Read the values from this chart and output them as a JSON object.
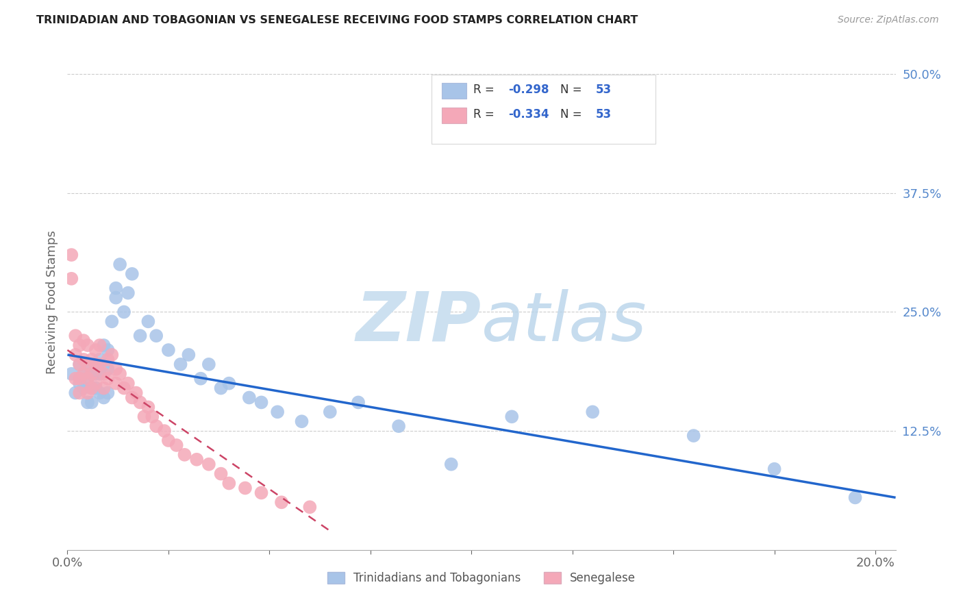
{
  "title": "TRINIDADIAN AND TOBAGONIAN VS SENEGALESE RECEIVING FOOD STAMPS CORRELATION CHART",
  "source": "Source: ZipAtlas.com",
  "ylabel": "Receiving Food Stamps",
  "blue_color": "#a8c4e8",
  "pink_color": "#f4a8b8",
  "blue_line_color": "#2266cc",
  "pink_line_color": "#cc4466",
  "text_color_dark": "#333333",
  "text_color_blue": "#3366cc",
  "text_color_right": "#5588cc",
  "r_blue": "-0.298",
  "r_pink": "-0.334",
  "n_blue": "53",
  "n_pink": "53",
  "legend_label_blue": "Trinidadians and Tobagonians",
  "legend_label_pink": "Senegalese",
  "blue_scatter_x": [
    0.001,
    0.002,
    0.003,
    0.003,
    0.004,
    0.004,
    0.005,
    0.005,
    0.005,
    0.006,
    0.006,
    0.006,
    0.007,
    0.007,
    0.008,
    0.008,
    0.008,
    0.009,
    0.009,
    0.009,
    0.01,
    0.01,
    0.01,
    0.011,
    0.012,
    0.012,
    0.013,
    0.014,
    0.015,
    0.016,
    0.018,
    0.02,
    0.022,
    0.025,
    0.028,
    0.03,
    0.033,
    0.035,
    0.038,
    0.04,
    0.045,
    0.048,
    0.052,
    0.058,
    0.065,
    0.072,
    0.082,
    0.095,
    0.11,
    0.13,
    0.155,
    0.175,
    0.195
  ],
  "blue_scatter_y": [
    0.185,
    0.165,
    0.195,
    0.175,
    0.185,
    0.17,
    0.195,
    0.175,
    0.155,
    0.185,
    0.17,
    0.155,
    0.185,
    0.17,
    0.2,
    0.185,
    0.165,
    0.215,
    0.195,
    0.16,
    0.21,
    0.19,
    0.165,
    0.24,
    0.275,
    0.265,
    0.3,
    0.25,
    0.27,
    0.29,
    0.225,
    0.24,
    0.225,
    0.21,
    0.195,
    0.205,
    0.18,
    0.195,
    0.17,
    0.175,
    0.16,
    0.155,
    0.145,
    0.135,
    0.145,
    0.155,
    0.13,
    0.09,
    0.14,
    0.145,
    0.12,
    0.085,
    0.055
  ],
  "pink_scatter_x": [
    0.001,
    0.001,
    0.002,
    0.002,
    0.002,
    0.003,
    0.003,
    0.003,
    0.003,
    0.004,
    0.004,
    0.004,
    0.005,
    0.005,
    0.005,
    0.005,
    0.006,
    0.006,
    0.006,
    0.007,
    0.007,
    0.007,
    0.008,
    0.008,
    0.009,
    0.009,
    0.01,
    0.01,
    0.011,
    0.012,
    0.012,
    0.013,
    0.014,
    0.015,
    0.016,
    0.017,
    0.018,
    0.019,
    0.02,
    0.021,
    0.022,
    0.024,
    0.025,
    0.027,
    0.029,
    0.032,
    0.035,
    0.038,
    0.04,
    0.044,
    0.048,
    0.053,
    0.06
  ],
  "pink_scatter_y": [
    0.31,
    0.285,
    0.225,
    0.205,
    0.18,
    0.215,
    0.195,
    0.18,
    0.165,
    0.22,
    0.2,
    0.185,
    0.215,
    0.195,
    0.18,
    0.165,
    0.2,
    0.185,
    0.17,
    0.21,
    0.195,
    0.175,
    0.215,
    0.195,
    0.185,
    0.17,
    0.2,
    0.18,
    0.205,
    0.19,
    0.175,
    0.185,
    0.17,
    0.175,
    0.16,
    0.165,
    0.155,
    0.14,
    0.15,
    0.14,
    0.13,
    0.125,
    0.115,
    0.11,
    0.1,
    0.095,
    0.09,
    0.08,
    0.07,
    0.065,
    0.06,
    0.05,
    0.045
  ],
  "xlim": [
    0.0,
    0.205
  ],
  "ylim": [
    0.0,
    0.52
  ],
  "xtick_positions": [
    0.0,
    0.025,
    0.05,
    0.075,
    0.1,
    0.125,
    0.15,
    0.175,
    0.2
  ],
  "right_ytick_values": [
    0.125,
    0.25,
    0.375,
    0.5
  ],
  "right_ytick_labels": [
    "12.5%",
    "25.0%",
    "37.5%",
    "50.0%"
  ],
  "blue_trend_x": [
    0.0,
    0.205
  ],
  "blue_trend_y": [
    0.205,
    0.055
  ],
  "pink_trend_x": [
    0.0,
    0.065
  ],
  "pink_trend_y": [
    0.21,
    0.02
  ]
}
